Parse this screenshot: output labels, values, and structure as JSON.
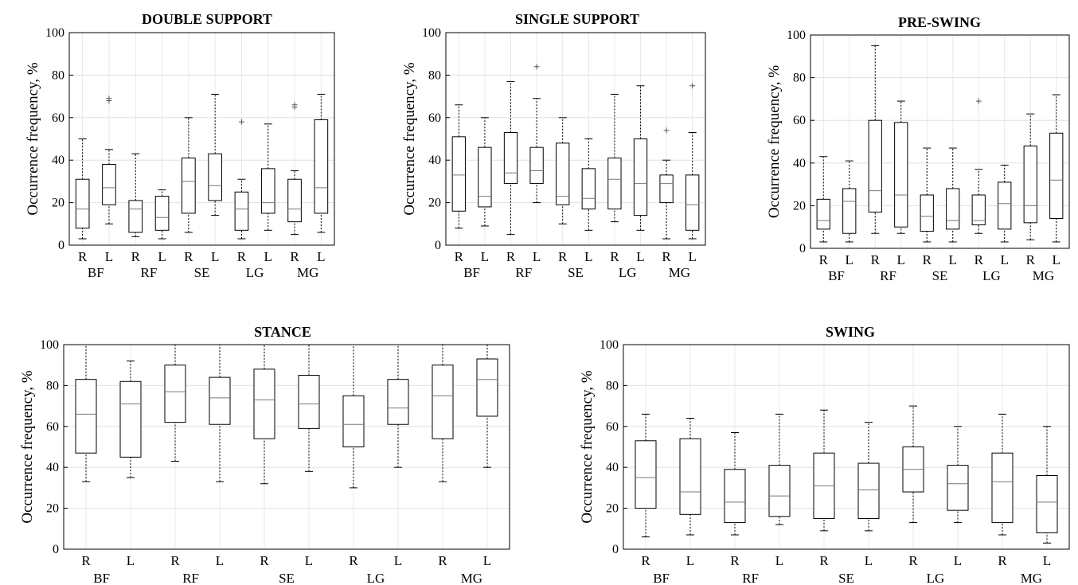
{
  "chart_data": [
    {
      "type": "box",
      "title": "DOUBLE SUPPORT",
      "ylabel": "Occurrence frequency, %",
      "ylim": [
        0,
        100
      ],
      "yticks": [
        0,
        20,
        40,
        60,
        80,
        100
      ],
      "grid": true,
      "categories": [
        "R",
        "L",
        "R",
        "L",
        "R",
        "L",
        "R",
        "L",
        "R",
        "L"
      ],
      "groups": [
        "BF",
        "RF",
        "SE",
        "LG",
        "MG"
      ],
      "boxes": [
        {
          "min": 3,
          "q1": 8,
          "median": 17,
          "q3": 31,
          "max": 50,
          "outliers": []
        },
        {
          "min": 10,
          "q1": 19,
          "median": 27,
          "q3": 38,
          "max": 45,
          "outliers": [
            68,
            69
          ]
        },
        {
          "min": 4,
          "q1": 6,
          "median": 17,
          "q3": 21,
          "max": 43,
          "outliers": []
        },
        {
          "min": 3,
          "q1": 7,
          "median": 13,
          "q3": 23,
          "max": 26,
          "outliers": []
        },
        {
          "min": 6,
          "q1": 15,
          "median": 30,
          "q3": 41,
          "max": 60,
          "outliers": []
        },
        {
          "min": 14,
          "q1": 21,
          "median": 28,
          "q3": 43,
          "max": 71,
          "outliers": []
        },
        {
          "min": 3,
          "q1": 7,
          "median": 17,
          "q3": 25,
          "max": 31,
          "outliers": [
            58
          ]
        },
        {
          "min": 7,
          "q1": 15,
          "median": 20,
          "q3": 36,
          "max": 57,
          "outliers": []
        },
        {
          "min": 5,
          "q1": 11,
          "median": 17,
          "q3": 31,
          "max": 35,
          "outliers": [
            65,
            66
          ]
        },
        {
          "min": 6,
          "q1": 15,
          "median": 27,
          "q3": 59,
          "max": 71,
          "outliers": []
        }
      ]
    },
    {
      "type": "box",
      "title": "SINGLE SUPPORT",
      "ylabel": "Occurrence frequency, %",
      "ylim": [
        0,
        100
      ],
      "yticks": [
        0,
        20,
        40,
        60,
        80,
        100
      ],
      "grid": true,
      "categories": [
        "R",
        "L",
        "R",
        "L",
        "R",
        "L",
        "R",
        "L",
        "R",
        "L"
      ],
      "groups": [
        "BF",
        "RF",
        "SE",
        "LG",
        "MG"
      ],
      "boxes": [
        {
          "min": 8,
          "q1": 16,
          "median": 33,
          "q3": 51,
          "max": 66,
          "outliers": []
        },
        {
          "min": 9,
          "q1": 18,
          "median": 23,
          "q3": 46,
          "max": 60,
          "outliers": []
        },
        {
          "min": 5,
          "q1": 29,
          "median": 34,
          "q3": 53,
          "max": 77,
          "outliers": []
        },
        {
          "min": 20,
          "q1": 29,
          "median": 35,
          "q3": 46,
          "max": 69,
          "outliers": [
            84
          ]
        },
        {
          "min": 10,
          "q1": 19,
          "median": 23,
          "q3": 48,
          "max": 60,
          "outliers": []
        },
        {
          "min": 7,
          "q1": 17,
          "median": 22,
          "q3": 36,
          "max": 50,
          "outliers": []
        },
        {
          "min": 11,
          "q1": 17,
          "median": 31,
          "q3": 41,
          "max": 71,
          "outliers": []
        },
        {
          "min": 7,
          "q1": 14,
          "median": 29,
          "q3": 50,
          "max": 75,
          "outliers": []
        },
        {
          "min": 3,
          "q1": 20,
          "median": 29,
          "q3": 33,
          "max": 40,
          "outliers": [
            54
          ]
        },
        {
          "min": 3,
          "q1": 7,
          "median": 19,
          "q3": 33,
          "max": 53,
          "outliers": [
            75
          ]
        }
      ]
    },
    {
      "type": "box",
      "title": "PRE-SWING",
      "ylabel": "Occurrence frequency, %",
      "ylim": [
        0,
        100
      ],
      "yticks": [
        0,
        20,
        40,
        60,
        80,
        100
      ],
      "grid": true,
      "categories": [
        "R",
        "L",
        "R",
        "L",
        "R",
        "L",
        "R",
        "L",
        "R",
        "L"
      ],
      "groups": [
        "BF",
        "RF",
        "SE",
        "LG",
        "MG"
      ],
      "boxes": [
        {
          "min": 3,
          "q1": 9,
          "median": 13,
          "q3": 23,
          "max": 43,
          "outliers": []
        },
        {
          "min": 3,
          "q1": 7,
          "median": 22,
          "q3": 28,
          "max": 41,
          "outliers": []
        },
        {
          "min": 7,
          "q1": 17,
          "median": 27,
          "q3": 60,
          "max": 95,
          "outliers": []
        },
        {
          "min": 7,
          "q1": 10,
          "median": 25,
          "q3": 59,
          "max": 69,
          "outliers": []
        },
        {
          "min": 3,
          "q1": 8,
          "median": 15,
          "q3": 25,
          "max": 47,
          "outliers": []
        },
        {
          "min": 3,
          "q1": 9,
          "median": 13,
          "q3": 28,
          "max": 47,
          "outliers": []
        },
        {
          "min": 7,
          "q1": 11,
          "median": 13,
          "q3": 25,
          "max": 37,
          "outliers": [
            69
          ]
        },
        {
          "min": 3,
          "q1": 9,
          "median": 21,
          "q3": 31,
          "max": 39,
          "outliers": []
        },
        {
          "min": 4,
          "q1": 12,
          "median": 20,
          "q3": 48,
          "max": 63,
          "outliers": []
        },
        {
          "min": 3,
          "q1": 14,
          "median": 32,
          "q3": 54,
          "max": 72,
          "outliers": []
        }
      ]
    },
    {
      "type": "box",
      "title": "STANCE",
      "ylabel": "Occurrence frequency, %",
      "ylim": [
        0,
        100
      ],
      "yticks": [
        0,
        20,
        40,
        60,
        80,
        100
      ],
      "grid": true,
      "categories": [
        "R",
        "L",
        "R",
        "L",
        "R",
        "L",
        "R",
        "L",
        "R",
        "L"
      ],
      "groups": [
        "BF",
        "RF",
        "SE",
        "LG",
        "MG"
      ],
      "boxes": [
        {
          "min": 33,
          "q1": 47,
          "median": 66,
          "q3": 83,
          "max": 100,
          "outliers": []
        },
        {
          "min": 35,
          "q1": 45,
          "median": 71,
          "q3": 82,
          "max": 92,
          "outliers": []
        },
        {
          "min": 43,
          "q1": 62,
          "median": 77,
          "q3": 90,
          "max": 100,
          "outliers": []
        },
        {
          "min": 33,
          "q1": 61,
          "median": 74,
          "q3": 84,
          "max": 100,
          "outliers": []
        },
        {
          "min": 32,
          "q1": 54,
          "median": 73,
          "q3": 88,
          "max": 100,
          "outliers": []
        },
        {
          "min": 38,
          "q1": 59,
          "median": 71,
          "q3": 85,
          "max": 100,
          "outliers": []
        },
        {
          "min": 30,
          "q1": 50,
          "median": 61,
          "q3": 75,
          "max": 100,
          "outliers": []
        },
        {
          "min": 40,
          "q1": 61,
          "median": 69,
          "q3": 83,
          "max": 100,
          "outliers": []
        },
        {
          "min": 33,
          "q1": 54,
          "median": 75,
          "q3": 90,
          "max": 100,
          "outliers": []
        },
        {
          "min": 40,
          "q1": 65,
          "median": 83,
          "q3": 93,
          "max": 100,
          "outliers": []
        }
      ]
    },
    {
      "type": "box",
      "title": "SWING",
      "ylabel": "Occurrence frequency, %",
      "ylim": [
        0,
        100
      ],
      "yticks": [
        0,
        20,
        40,
        60,
        80,
        100
      ],
      "grid": true,
      "categories": [
        "R",
        "L",
        "R",
        "L",
        "R",
        "L",
        "R",
        "L",
        "R",
        "L"
      ],
      "groups": [
        "BF",
        "RF",
        "SE",
        "LG",
        "MG"
      ],
      "boxes": [
        {
          "min": 6,
          "q1": 20,
          "median": 35,
          "q3": 53,
          "max": 66,
          "outliers": []
        },
        {
          "min": 7,
          "q1": 17,
          "median": 28,
          "q3": 54,
          "max": 64,
          "outliers": []
        },
        {
          "min": 7,
          "q1": 13,
          "median": 23,
          "q3": 39,
          "max": 57,
          "outliers": []
        },
        {
          "min": 12,
          "q1": 16,
          "median": 26,
          "q3": 41,
          "max": 66,
          "outliers": []
        },
        {
          "min": 9,
          "q1": 15,
          "median": 31,
          "q3": 47,
          "max": 68,
          "outliers": []
        },
        {
          "min": 9,
          "q1": 15,
          "median": 29,
          "q3": 42,
          "max": 62,
          "outliers": []
        },
        {
          "min": 13,
          "q1": 28,
          "median": 39,
          "q3": 50,
          "max": 70,
          "outliers": []
        },
        {
          "min": 13,
          "q1": 19,
          "median": 32,
          "q3": 41,
          "max": 60,
          "outliers": []
        },
        {
          "min": 7,
          "q1": 13,
          "median": 33,
          "q3": 47,
          "max": 66,
          "outliers": []
        },
        {
          "min": 3,
          "q1": 8,
          "median": 23,
          "q3": 36,
          "max": 60,
          "outliers": []
        }
      ]
    }
  ]
}
